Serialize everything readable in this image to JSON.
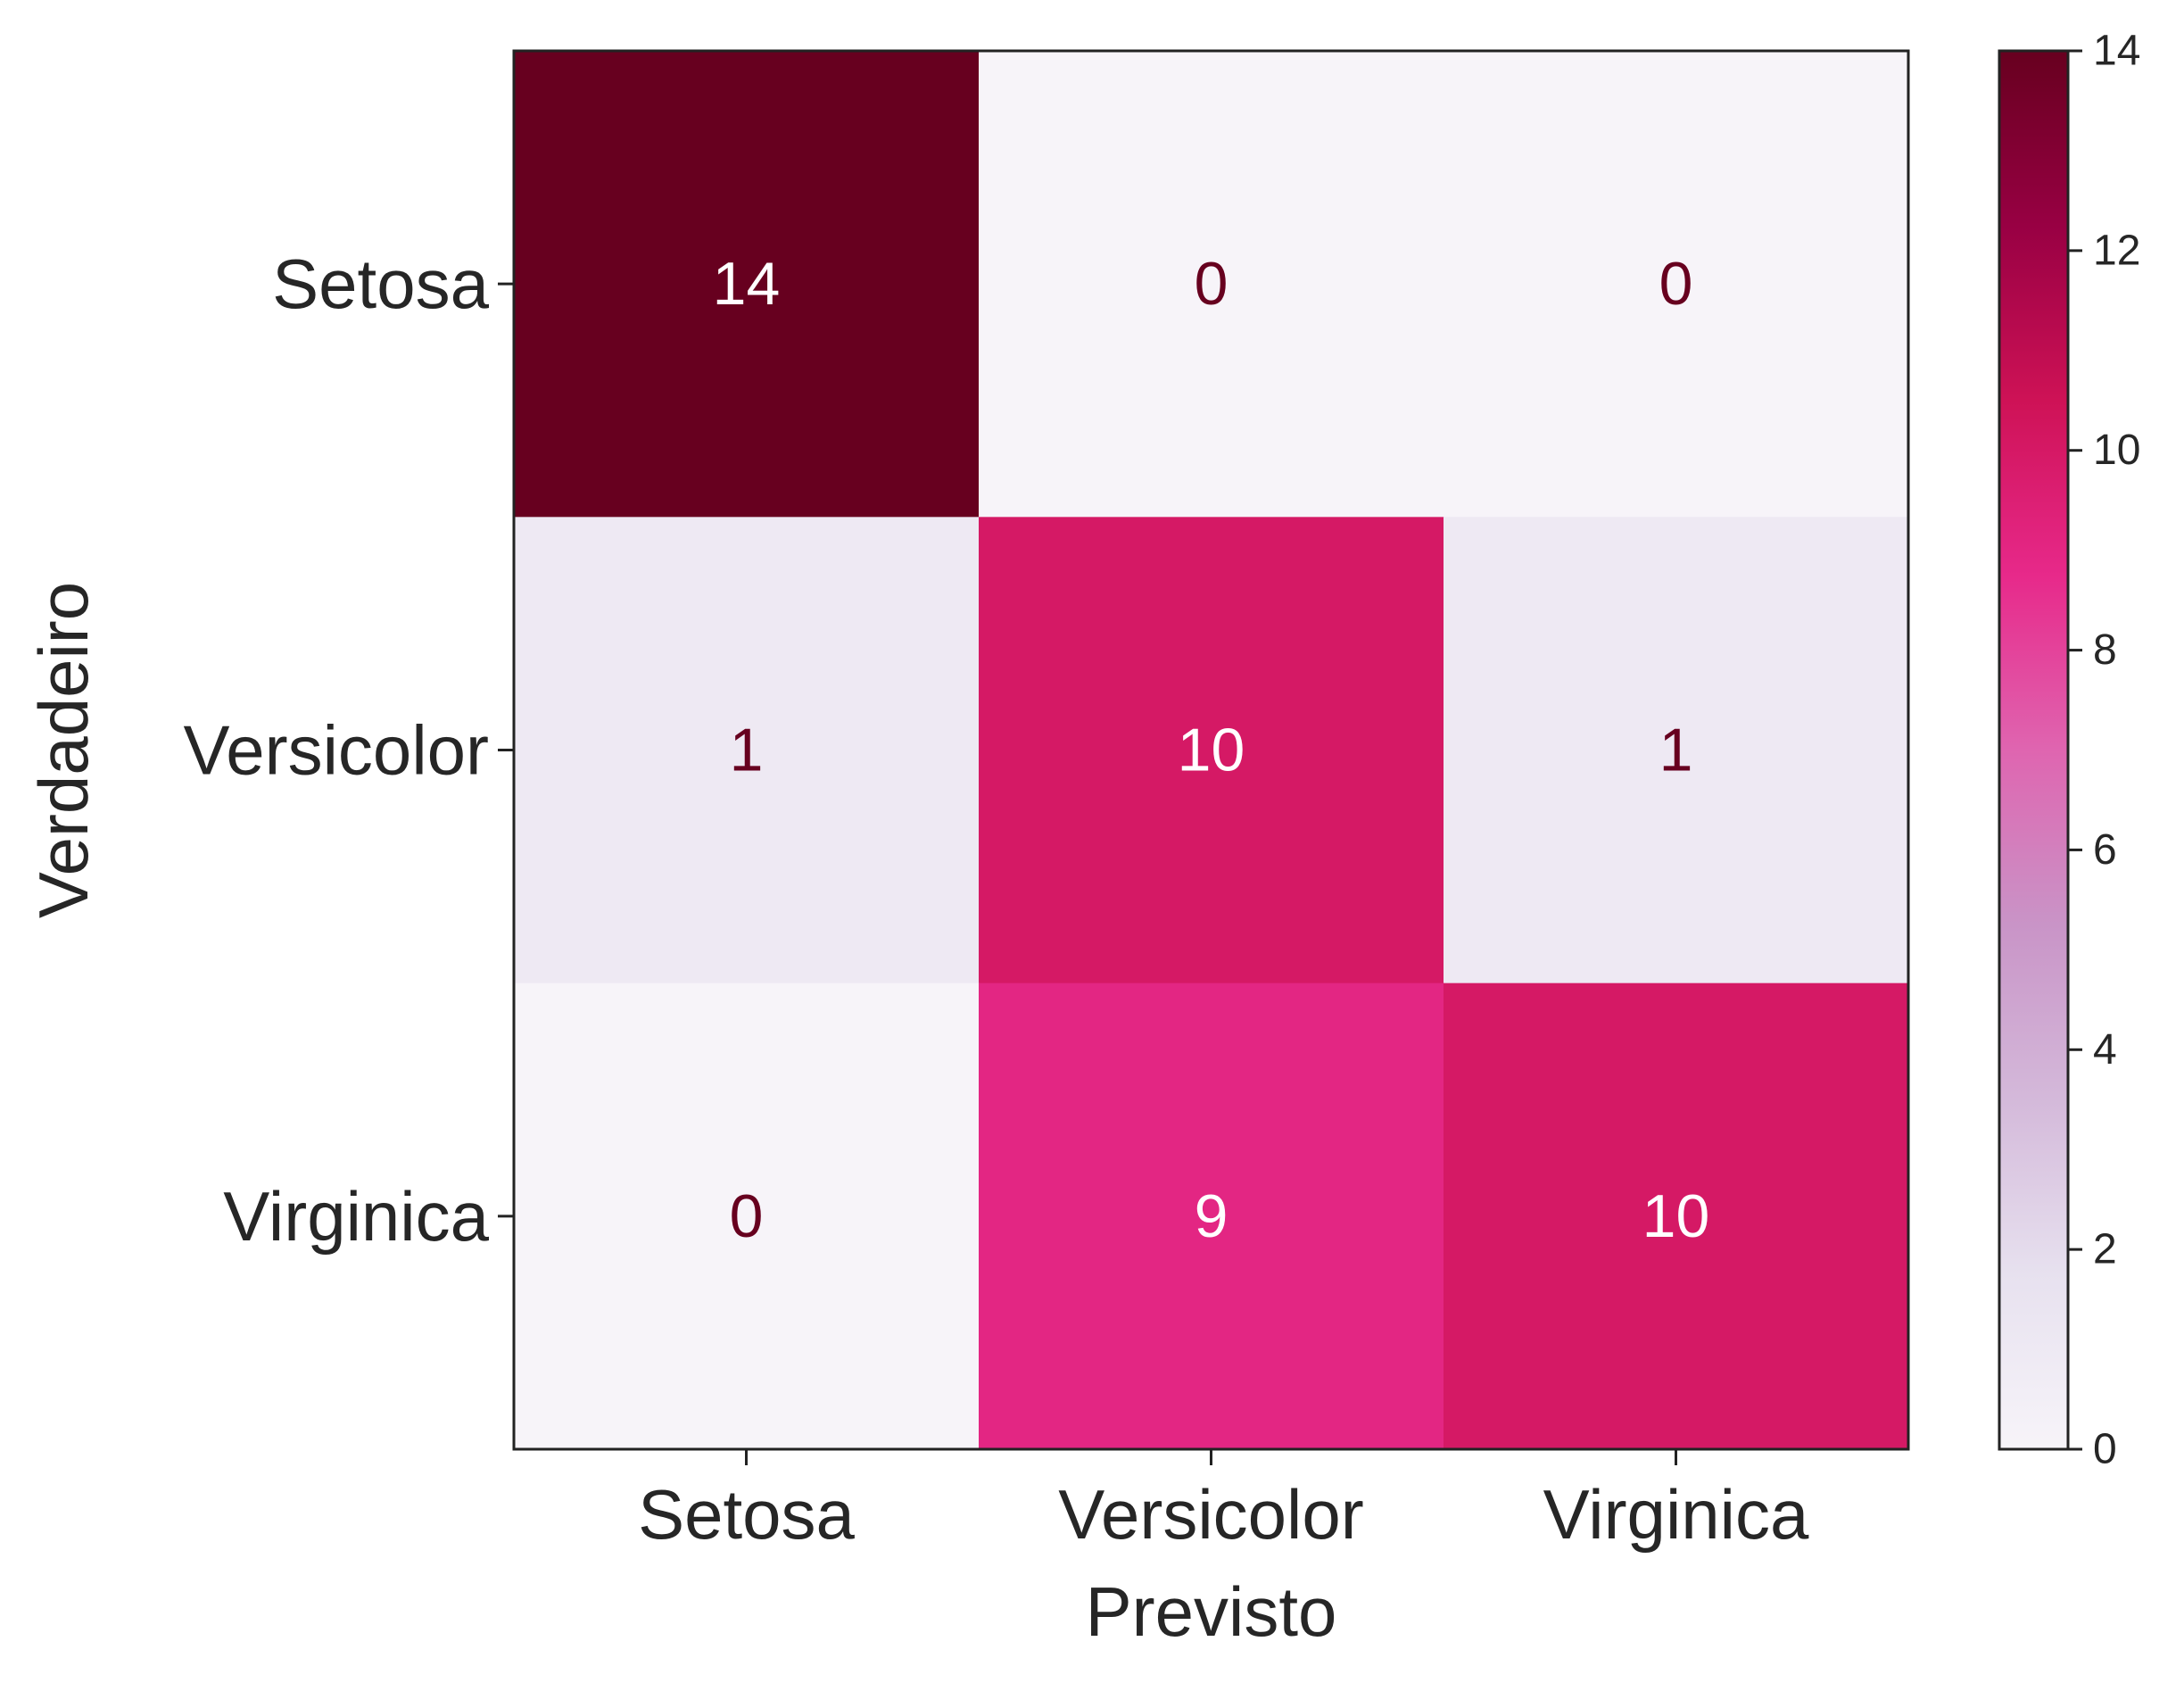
{
  "chart_data": {
    "type": "heatmap",
    "title": "",
    "xlabel": "Previsto",
    "ylabel": "Verdadeiro",
    "x_categories": [
      "Setosa",
      "Versicolor",
      "Virginica"
    ],
    "y_categories": [
      "Setosa",
      "Versicolor",
      "Virginica"
    ],
    "values": [
      [
        14,
        0,
        0
      ],
      [
        1,
        10,
        1
      ],
      [
        0,
        9,
        10
      ]
    ],
    "colorbar": {
      "range": [
        0,
        14
      ],
      "ticks": [
        0,
        2,
        4,
        6,
        8,
        10,
        12,
        14
      ],
      "tick_labels": [
        "0",
        "2",
        "4",
        "6",
        "8",
        "10",
        "12",
        "14"
      ]
    },
    "colormap": "PuRd",
    "colormap_stops": [
      "#f7f4f9",
      "#e7e1ef",
      "#d4b9da",
      "#c994c7",
      "#df65b0",
      "#e7298a",
      "#ce1256",
      "#980043",
      "#67001f"
    ],
    "text_colors": {
      "dark_cell": "#ffffff",
      "light_cell": "#67001f"
    },
    "grid": false
  }
}
